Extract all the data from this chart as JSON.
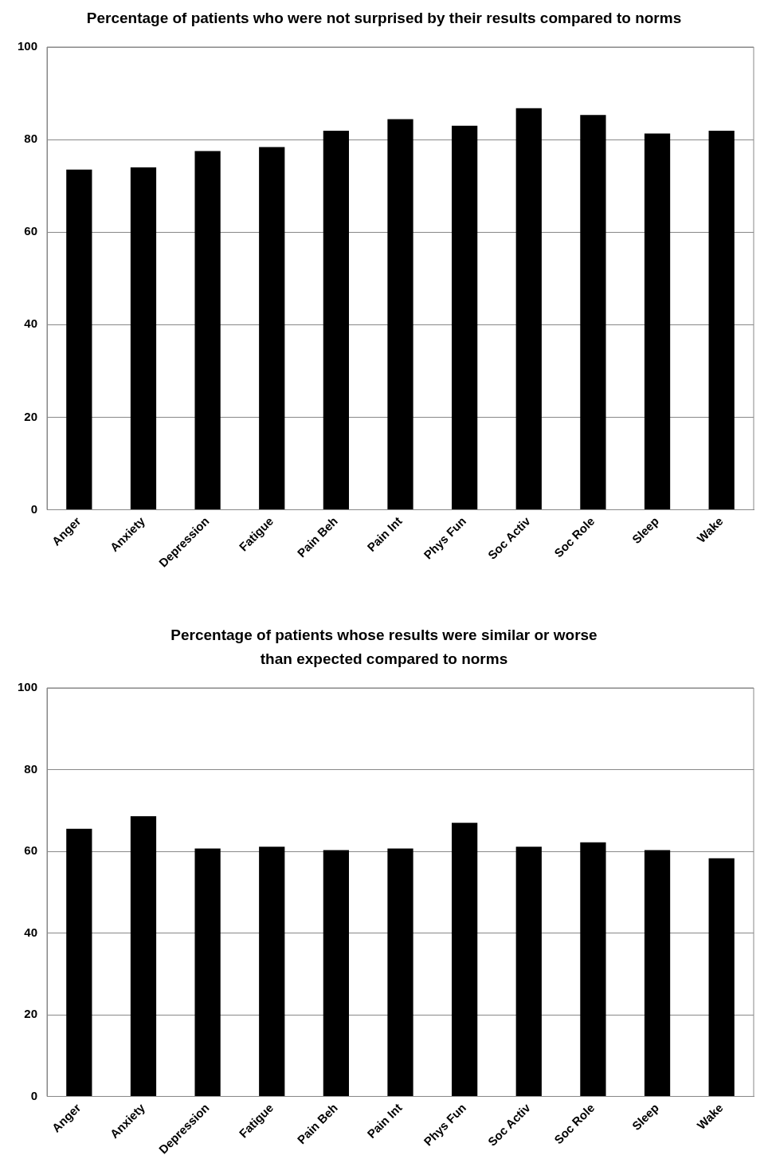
{
  "chart_data": [
    {
      "type": "bar",
      "title": "Percentage of patients who were not surprised by their results compared to norms",
      "categories": [
        "Anger",
        "Anxiety",
        "Depression",
        "Fatigue",
        "Pain Beh",
        "Pain Int",
        "Phys Fun",
        "Soc Activ",
        "Soc Role",
        "Sleep",
        "Wake"
      ],
      "values": [
        73.5,
        74,
        77.5,
        78.4,
        81.9,
        84.4,
        83,
        86.8,
        85.3,
        81.3,
        81.9
      ],
      "color": "#000000",
      "ylim": [
        0,
        100
      ],
      "yticks": [
        0,
        20,
        40,
        60,
        80,
        100
      ],
      "grid": "y"
    },
    {
      "type": "bar",
      "title": "Percentage of patients whose results were similar or worse than expected compared to norms",
      "categories": [
        "Anger",
        "Anxiety",
        "Depression",
        "Fatigue",
        "Pain Beh",
        "Pain Int",
        "Phys Fun",
        "Soc Activ",
        "Soc Role",
        "Sleep",
        "Wake"
      ],
      "values": [
        65.5,
        68.6,
        60.7,
        61.1,
        60.3,
        60.7,
        67,
        61.1,
        62.2,
        60.3,
        58.3
      ],
      "color": "#000000",
      "ylim": [
        0,
        100
      ],
      "yticks": [
        0,
        20,
        40,
        60,
        80,
        100
      ],
      "grid": "y"
    }
  ]
}
